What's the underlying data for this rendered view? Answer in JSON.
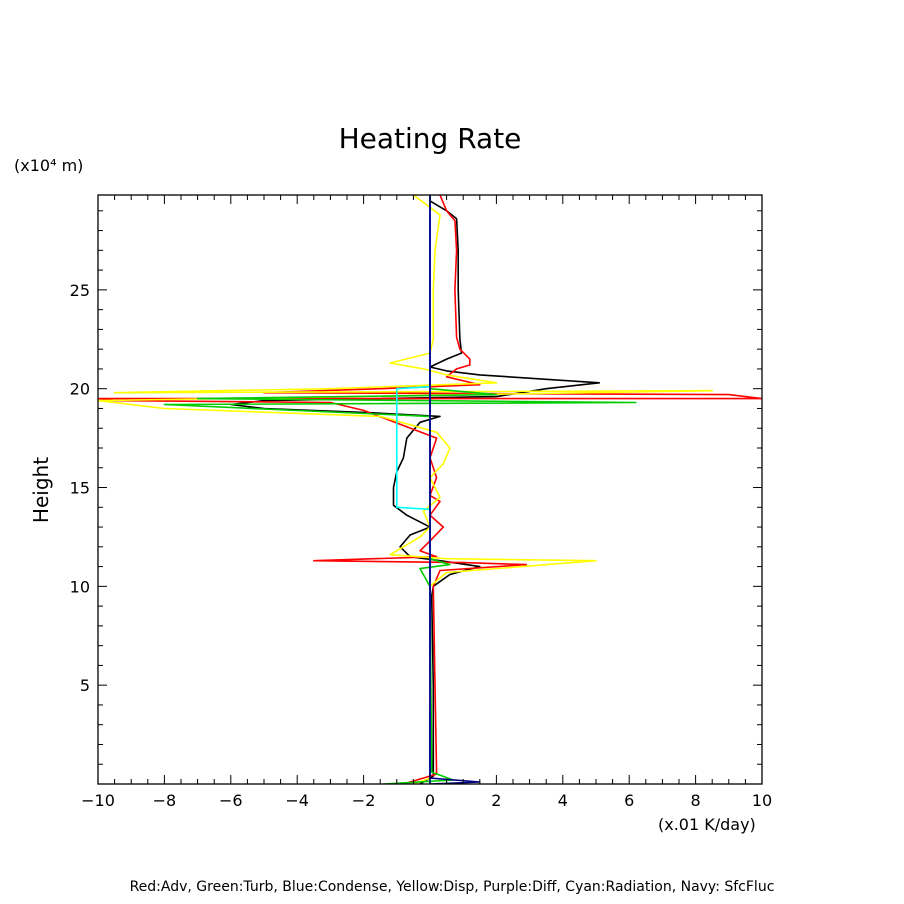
{
  "chart_data": {
    "type": "line",
    "title": "Heating Rate",
    "ylabel": "Height",
    "y_unit": "(x10⁴ m)",
    "x_unit": "(x.01 K/day)",
    "xlim": [
      -10,
      10
    ],
    "ylim": [
      0,
      29.8
    ],
    "x_ticks": [
      -10,
      -8,
      -6,
      -4,
      -2,
      0,
      2,
      4,
      6,
      8,
      10
    ],
    "x_tick_labels": [
      "−10",
      "−8",
      "−6",
      "−4",
      "−2",
      "0",
      "2",
      "4",
      "6",
      "8",
      "10"
    ],
    "y_ticks": [
      5,
      10,
      15,
      20,
      25
    ],
    "y_tick_labels": [
      "5",
      "10",
      "15",
      "20",
      "25"
    ],
    "legend_text": "Red:Adv, Green:Turb, Blue:Condense, Yellow:Disp, Purple:Diff, Cyan:Radiation, Navy: SfcFluc",
    "series": [
      {
        "color": "#000000",
        "points": [
          [
            -0.3,
            0
          ],
          [
            0.1,
            0.4
          ],
          [
            0.1,
            5
          ],
          [
            0.05,
            9.5
          ],
          [
            0.1,
            10
          ],
          [
            0.6,
            10.6
          ],
          [
            1.5,
            11
          ],
          [
            0.3,
            11.3
          ],
          [
            -0.6,
            11.5
          ],
          [
            -0.9,
            12
          ],
          [
            -0.6,
            12.6
          ],
          [
            0,
            13
          ],
          [
            -0.7,
            13.6
          ],
          [
            -1.1,
            14.1
          ],
          [
            -1.1,
            15
          ],
          [
            -1,
            15.8
          ],
          [
            -0.8,
            16.5
          ],
          [
            -0.7,
            17.5
          ],
          [
            -0.3,
            18.3
          ],
          [
            0.3,
            18.6
          ],
          [
            -2,
            18.8
          ],
          [
            -5,
            19
          ],
          [
            -6,
            19.2
          ],
          [
            -5,
            19.4
          ],
          [
            2,
            19.6
          ],
          [
            3.5,
            20
          ],
          [
            5.1,
            20.3
          ],
          [
            1.5,
            20.7
          ],
          [
            0.5,
            20.9
          ],
          [
            0,
            21.1
          ],
          [
            0.5,
            21.5
          ],
          [
            0.95,
            21.8
          ],
          [
            0.9,
            22.5
          ],
          [
            0.85,
            25
          ],
          [
            0.85,
            27
          ],
          [
            0.8,
            28.6
          ],
          [
            0.5,
            29
          ],
          [
            0,
            29.5
          ]
        ]
      },
      {
        "color": "#ff0000",
        "points": [
          [
            -0.8,
            0
          ],
          [
            0.2,
            0.5
          ],
          [
            0.15,
            5
          ],
          [
            0.1,
            10
          ],
          [
            0.3,
            10.8
          ],
          [
            2.9,
            11.1
          ],
          [
            1,
            11.2
          ],
          [
            -3.5,
            11.3
          ],
          [
            0.2,
            11.5
          ],
          [
            -0.3,
            11.8
          ],
          [
            0,
            12.3
          ],
          [
            0.4,
            13
          ],
          [
            0,
            13.6
          ],
          [
            0.3,
            14.3
          ],
          [
            0,
            14.6
          ],
          [
            0.2,
            15.5
          ],
          [
            0,
            16.5
          ],
          [
            0.2,
            17.5
          ],
          [
            -2,
            18.9
          ],
          [
            -3,
            19.3
          ],
          [
            -9.5,
            19.4
          ],
          [
            -10,
            19.5
          ],
          [
            10,
            19.5
          ],
          [
            9,
            19.7
          ],
          [
            -5,
            19.8
          ],
          [
            -1.5,
            20
          ],
          [
            1.5,
            20.2
          ],
          [
            0.5,
            20.6
          ],
          [
            0.8,
            21
          ],
          [
            1.2,
            21.2
          ],
          [
            1.2,
            21.5
          ],
          [
            0.9,
            22
          ],
          [
            0.8,
            22.6
          ],
          [
            0.75,
            25
          ],
          [
            0.8,
            27
          ],
          [
            0.75,
            28.5
          ],
          [
            0.5,
            29
          ],
          [
            0.3,
            29.8
          ]
        ]
      },
      {
        "color": "#ffff00",
        "points": [
          [
            -0.5,
            0
          ],
          [
            0,
            0.3
          ],
          [
            0,
            10
          ],
          [
            0.5,
            10.7
          ],
          [
            5,
            11.3
          ],
          [
            0.5,
            11.4
          ],
          [
            -1.2,
            11.6
          ],
          [
            -0.8,
            12
          ],
          [
            -0.3,
            12.5
          ],
          [
            0,
            13
          ],
          [
            -0.2,
            13.8
          ],
          [
            0.3,
            14.5
          ],
          [
            0,
            15.5
          ],
          [
            0.4,
            16.2
          ],
          [
            0.6,
            17
          ],
          [
            0.2,
            17.8
          ],
          [
            -1.5,
            18.6
          ],
          [
            -8,
            19
          ],
          [
            -10,
            19.4
          ],
          [
            8.5,
            19.9
          ],
          [
            -9.5,
            19.8
          ],
          [
            -3,
            20
          ],
          [
            2,
            20.3
          ],
          [
            0.5,
            20.7
          ],
          [
            -0.2,
            21
          ],
          [
            -1.2,
            21.3
          ],
          [
            0,
            21.8
          ],
          [
            0.1,
            22.5
          ],
          [
            0.1,
            25
          ],
          [
            0.15,
            27
          ],
          [
            0.3,
            28.8
          ],
          [
            -0.5,
            29.8
          ]
        ]
      },
      {
        "color": "#00cc00",
        "points": [
          [
            -1.4,
            0
          ],
          [
            0.7,
            0.2
          ],
          [
            0.05,
            0.6
          ],
          [
            0,
            10
          ],
          [
            -0.3,
            10.9
          ],
          [
            0.6,
            11.1
          ],
          [
            0,
            11.4
          ],
          [
            0,
            18.6
          ],
          [
            -8,
            19.2
          ],
          [
            6.2,
            19.3
          ],
          [
            -7,
            19.5
          ],
          [
            2,
            19.7
          ],
          [
            0,
            20
          ]
        ]
      },
      {
        "color": "#00ffff",
        "points": [
          [
            0,
            0
          ],
          [
            0,
            13.9
          ],
          [
            -1,
            14
          ],
          [
            -1,
            20
          ],
          [
            0,
            20.1
          ],
          [
            0,
            29.8
          ]
        ]
      },
      {
        "color": "#0000ff",
        "points": [
          [
            0,
            0
          ],
          [
            0,
            29.8
          ]
        ]
      },
      {
        "color": "#000080",
        "points": [
          [
            0,
            0
          ],
          [
            1.5,
            0.1
          ],
          [
            0,
            0.3
          ],
          [
            0,
            29.8
          ]
        ]
      }
    ]
  }
}
